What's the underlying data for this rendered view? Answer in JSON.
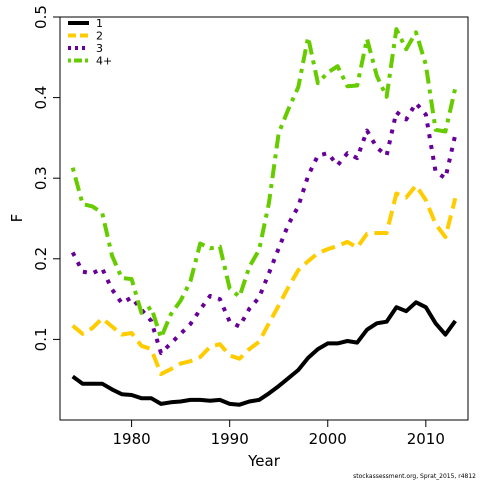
{
  "chart_data": {
    "type": "line",
    "xlabel": "Year",
    "ylabel": "F",
    "xlim": [
      1972.7,
      2014.3
    ],
    "ylim": [
      0.0,
      0.5
    ],
    "xticks": [
      1980,
      1990,
      2000,
      2010
    ],
    "yticks": [
      0.1,
      0.2,
      0.3,
      0.4,
      0.5
    ],
    "grid": false,
    "legend_position": "top-left",
    "footnote": "stockassessment.org, Sprat_2015, r4812",
    "x": [
      1974,
      1975,
      1976,
      1977,
      1978,
      1979,
      1980,
      1981,
      1982,
      1983,
      1984,
      1985,
      1986,
      1987,
      1988,
      1989,
      1990,
      1991,
      1992,
      1993,
      1994,
      1995,
      1996,
      1997,
      1998,
      1999,
      2000,
      2001,
      2002,
      2003,
      2004,
      2005,
      2006,
      2007,
      2008,
      2009,
      2010,
      2011,
      2012,
      2013
    ],
    "series": [
      {
        "name": "1",
        "color": "#000000",
        "dash": "solid",
        "values": [
          0.054,
          0.045,
          0.045,
          0.045,
          0.038,
          0.032,
          0.031,
          0.027,
          0.027,
          0.02,
          0.022,
          0.023,
          0.025,
          0.025,
          0.024,
          0.025,
          0.02,
          0.019,
          0.023,
          0.025,
          0.033,
          0.042,
          0.052,
          0.062,
          0.077,
          0.088,
          0.095,
          0.095,
          0.098,
          0.096,
          0.112,
          0.12,
          0.122,
          0.14,
          0.135,
          0.146,
          0.14,
          0.12,
          0.106,
          0.123
        ]
      },
      {
        "name": "2",
        "color": "#FFCC00",
        "dash": "dashed",
        "values": [
          0.117,
          0.107,
          0.114,
          0.126,
          0.116,
          0.106,
          0.108,
          0.092,
          0.088,
          0.057,
          0.063,
          0.07,
          0.073,
          0.078,
          0.091,
          0.094,
          0.08,
          0.076,
          0.088,
          0.097,
          0.12,
          0.142,
          0.165,
          0.186,
          0.197,
          0.207,
          0.212,
          0.216,
          0.221,
          0.214,
          0.231,
          0.232,
          0.232,
          0.281,
          0.276,
          0.291,
          0.273,
          0.243,
          0.227,
          0.275
        ]
      },
      {
        "name": "3",
        "color": "#660099",
        "dash": "dotted",
        "values": [
          0.208,
          0.184,
          0.182,
          0.188,
          0.162,
          0.145,
          0.152,
          0.137,
          0.123,
          0.083,
          0.095,
          0.107,
          0.119,
          0.137,
          0.154,
          0.15,
          0.122,
          0.116,
          0.138,
          0.152,
          0.182,
          0.213,
          0.243,
          0.265,
          0.303,
          0.328,
          0.331,
          0.316,
          0.331,
          0.325,
          0.359,
          0.338,
          0.328,
          0.382,
          0.373,
          0.393,
          0.379,
          0.308,
          0.3,
          0.354
        ]
      },
      {
        "name": "4+",
        "color": "#66CC00",
        "dash": "dotdash",
        "values": [
          0.313,
          0.268,
          0.265,
          0.257,
          0.204,
          0.176,
          0.175,
          0.133,
          0.14,
          0.102,
          0.131,
          0.148,
          0.172,
          0.219,
          0.213,
          0.215,
          0.163,
          0.153,
          0.19,
          0.211,
          0.269,
          0.356,
          0.386,
          0.413,
          0.475,
          0.418,
          0.431,
          0.439,
          0.414,
          0.415,
          0.473,
          0.427,
          0.401,
          0.485,
          0.46,
          0.481,
          0.441,
          0.36,
          0.358,
          0.412
        ]
      }
    ]
  }
}
